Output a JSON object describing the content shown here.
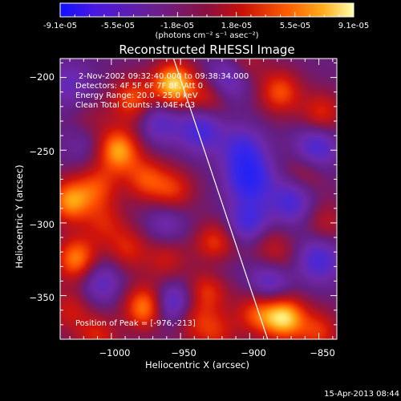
{
  "colorbar": {
    "ticks": [
      "-9.1e-05",
      "-5.5e-05",
      "-1.8e-05",
      "1.8e-05",
      "5.5e-05",
      "9.1e-05"
    ],
    "units": "(photons cm⁻² s⁻¹ asec⁻²)",
    "colors": [
      "#1010ff",
      "#7020a0",
      "#6a2090",
      "#b01010",
      "#ff3000",
      "#ff9a00",
      "#ffff90"
    ]
  },
  "chart_data": {
    "type": "heatmap",
    "title": "Reconstructed RHESSI Image",
    "xlabel": "Heliocentric X (arcsec)",
    "ylabel": "Heliocentric Y (arcsec)",
    "xlim": [
      -1037,
      -837
    ],
    "ylim": [
      -380,
      -187
    ],
    "x_ticks": [
      -1000,
      -950,
      -900,
      -850
    ],
    "x_tick_labels": [
      "−1000",
      "−950",
      "−900",
      "−850"
    ],
    "y_ticks": [
      -200,
      -250,
      -300,
      -350
    ],
    "y_tick_labels": [
      "−200",
      "−250",
      "−300",
      "−350"
    ],
    "limb_line": [
      [
        -955,
        -187
      ],
      [
        -887,
        -380
      ]
    ],
    "peak": [
      -976,
      -213
    ],
    "annotations": [
      "2-Nov-2002 09:32:40.000 to 09:38:34.000",
      "Detectors: 4F 5F 6F 7F 8F, Att 0",
      "Energy Range: 20.0 - 25.0 keV",
      "Clean    Total Counts: 3.04E+03"
    ],
    "peak_label": "Position of Peak = [-976,-213]",
    "blobs": [
      {
        "x": -985,
        "y": -215,
        "v": 0.55
      },
      {
        "x": -955,
        "y": -205,
        "v": 0.9
      },
      {
        "x": -930,
        "y": -215,
        "v": 0.4
      },
      {
        "x": -1015,
        "y": -230,
        "v": 0.2
      },
      {
        "x": -995,
        "y": -250,
        "v": 0.75
      },
      {
        "x": -1030,
        "y": -285,
        "v": 0.7
      },
      {
        "x": -1010,
        "y": -275,
        "v": 0.45
      },
      {
        "x": -975,
        "y": -270,
        "v": 0.5
      },
      {
        "x": -955,
        "y": -278,
        "v": 0.45
      },
      {
        "x": -1005,
        "y": -300,
        "v": 0.35
      },
      {
        "x": -1025,
        "y": -325,
        "v": 0.7
      },
      {
        "x": -988,
        "y": -318,
        "v": 0.4
      },
      {
        "x": -1030,
        "y": -360,
        "v": 0.35
      },
      {
        "x": -960,
        "y": -325,
        "v": 0.35
      },
      {
        "x": -925,
        "y": -315,
        "v": 0.55
      },
      {
        "x": -930,
        "y": -345,
        "v": 0.5
      },
      {
        "x": -945,
        "y": -365,
        "v": 0.45
      },
      {
        "x": -925,
        "y": -375,
        "v": 0.4
      },
      {
        "x": -975,
        "y": -358,
        "v": 0.75
      },
      {
        "x": -1010,
        "y": -378,
        "v": 0.4
      },
      {
        "x": -895,
        "y": -362,
        "v": 0.5
      },
      {
        "x": -890,
        "y": -310,
        "v": 0.25
      },
      {
        "x": -875,
        "y": -365,
        "v": 0.85
      },
      {
        "x": -850,
        "y": -375,
        "v": 0.45
      },
      {
        "x": -848,
        "y": -225,
        "v": 0.45
      },
      {
        "x": -878,
        "y": -210,
        "v": 0.55
      },
      {
        "x": -905,
        "y": -190,
        "v": 0.35
      },
      {
        "x": -860,
        "y": -265,
        "v": 0.3
      },
      {
        "x": -880,
        "y": -325,
        "v": 0.3
      },
      {
        "x": -845,
        "y": -300,
        "v": 0.3
      },
      {
        "x": -965,
        "y": -230,
        "v": -0.4
      },
      {
        "x": -935,
        "y": -235,
        "v": -0.55
      },
      {
        "x": -905,
        "y": -250,
        "v": -0.5
      },
      {
        "x": -900,
        "y": -270,
        "v": -0.7
      },
      {
        "x": -870,
        "y": -285,
        "v": -0.5
      },
      {
        "x": -900,
        "y": -300,
        "v": -0.6
      },
      {
        "x": -885,
        "y": -340,
        "v": -0.5
      },
      {
        "x": -955,
        "y": -357,
        "v": -0.7
      },
      {
        "x": -1008,
        "y": -340,
        "v": -0.4
      },
      {
        "x": -960,
        "y": -300,
        "v": -0.3
      },
      {
        "x": -1030,
        "y": -205,
        "v": -0.3
      },
      {
        "x": -915,
        "y": -200,
        "v": -0.5
      },
      {
        "x": -852,
        "y": -248,
        "v": -0.55
      },
      {
        "x": -850,
        "y": -325,
        "v": -0.5
      },
      {
        "x": -925,
        "y": -330,
        "v": -0.25
      },
      {
        "x": -1020,
        "y": -245,
        "v": -0.2
      }
    ]
  },
  "timestamp": "15-Apr-2013 08:44"
}
